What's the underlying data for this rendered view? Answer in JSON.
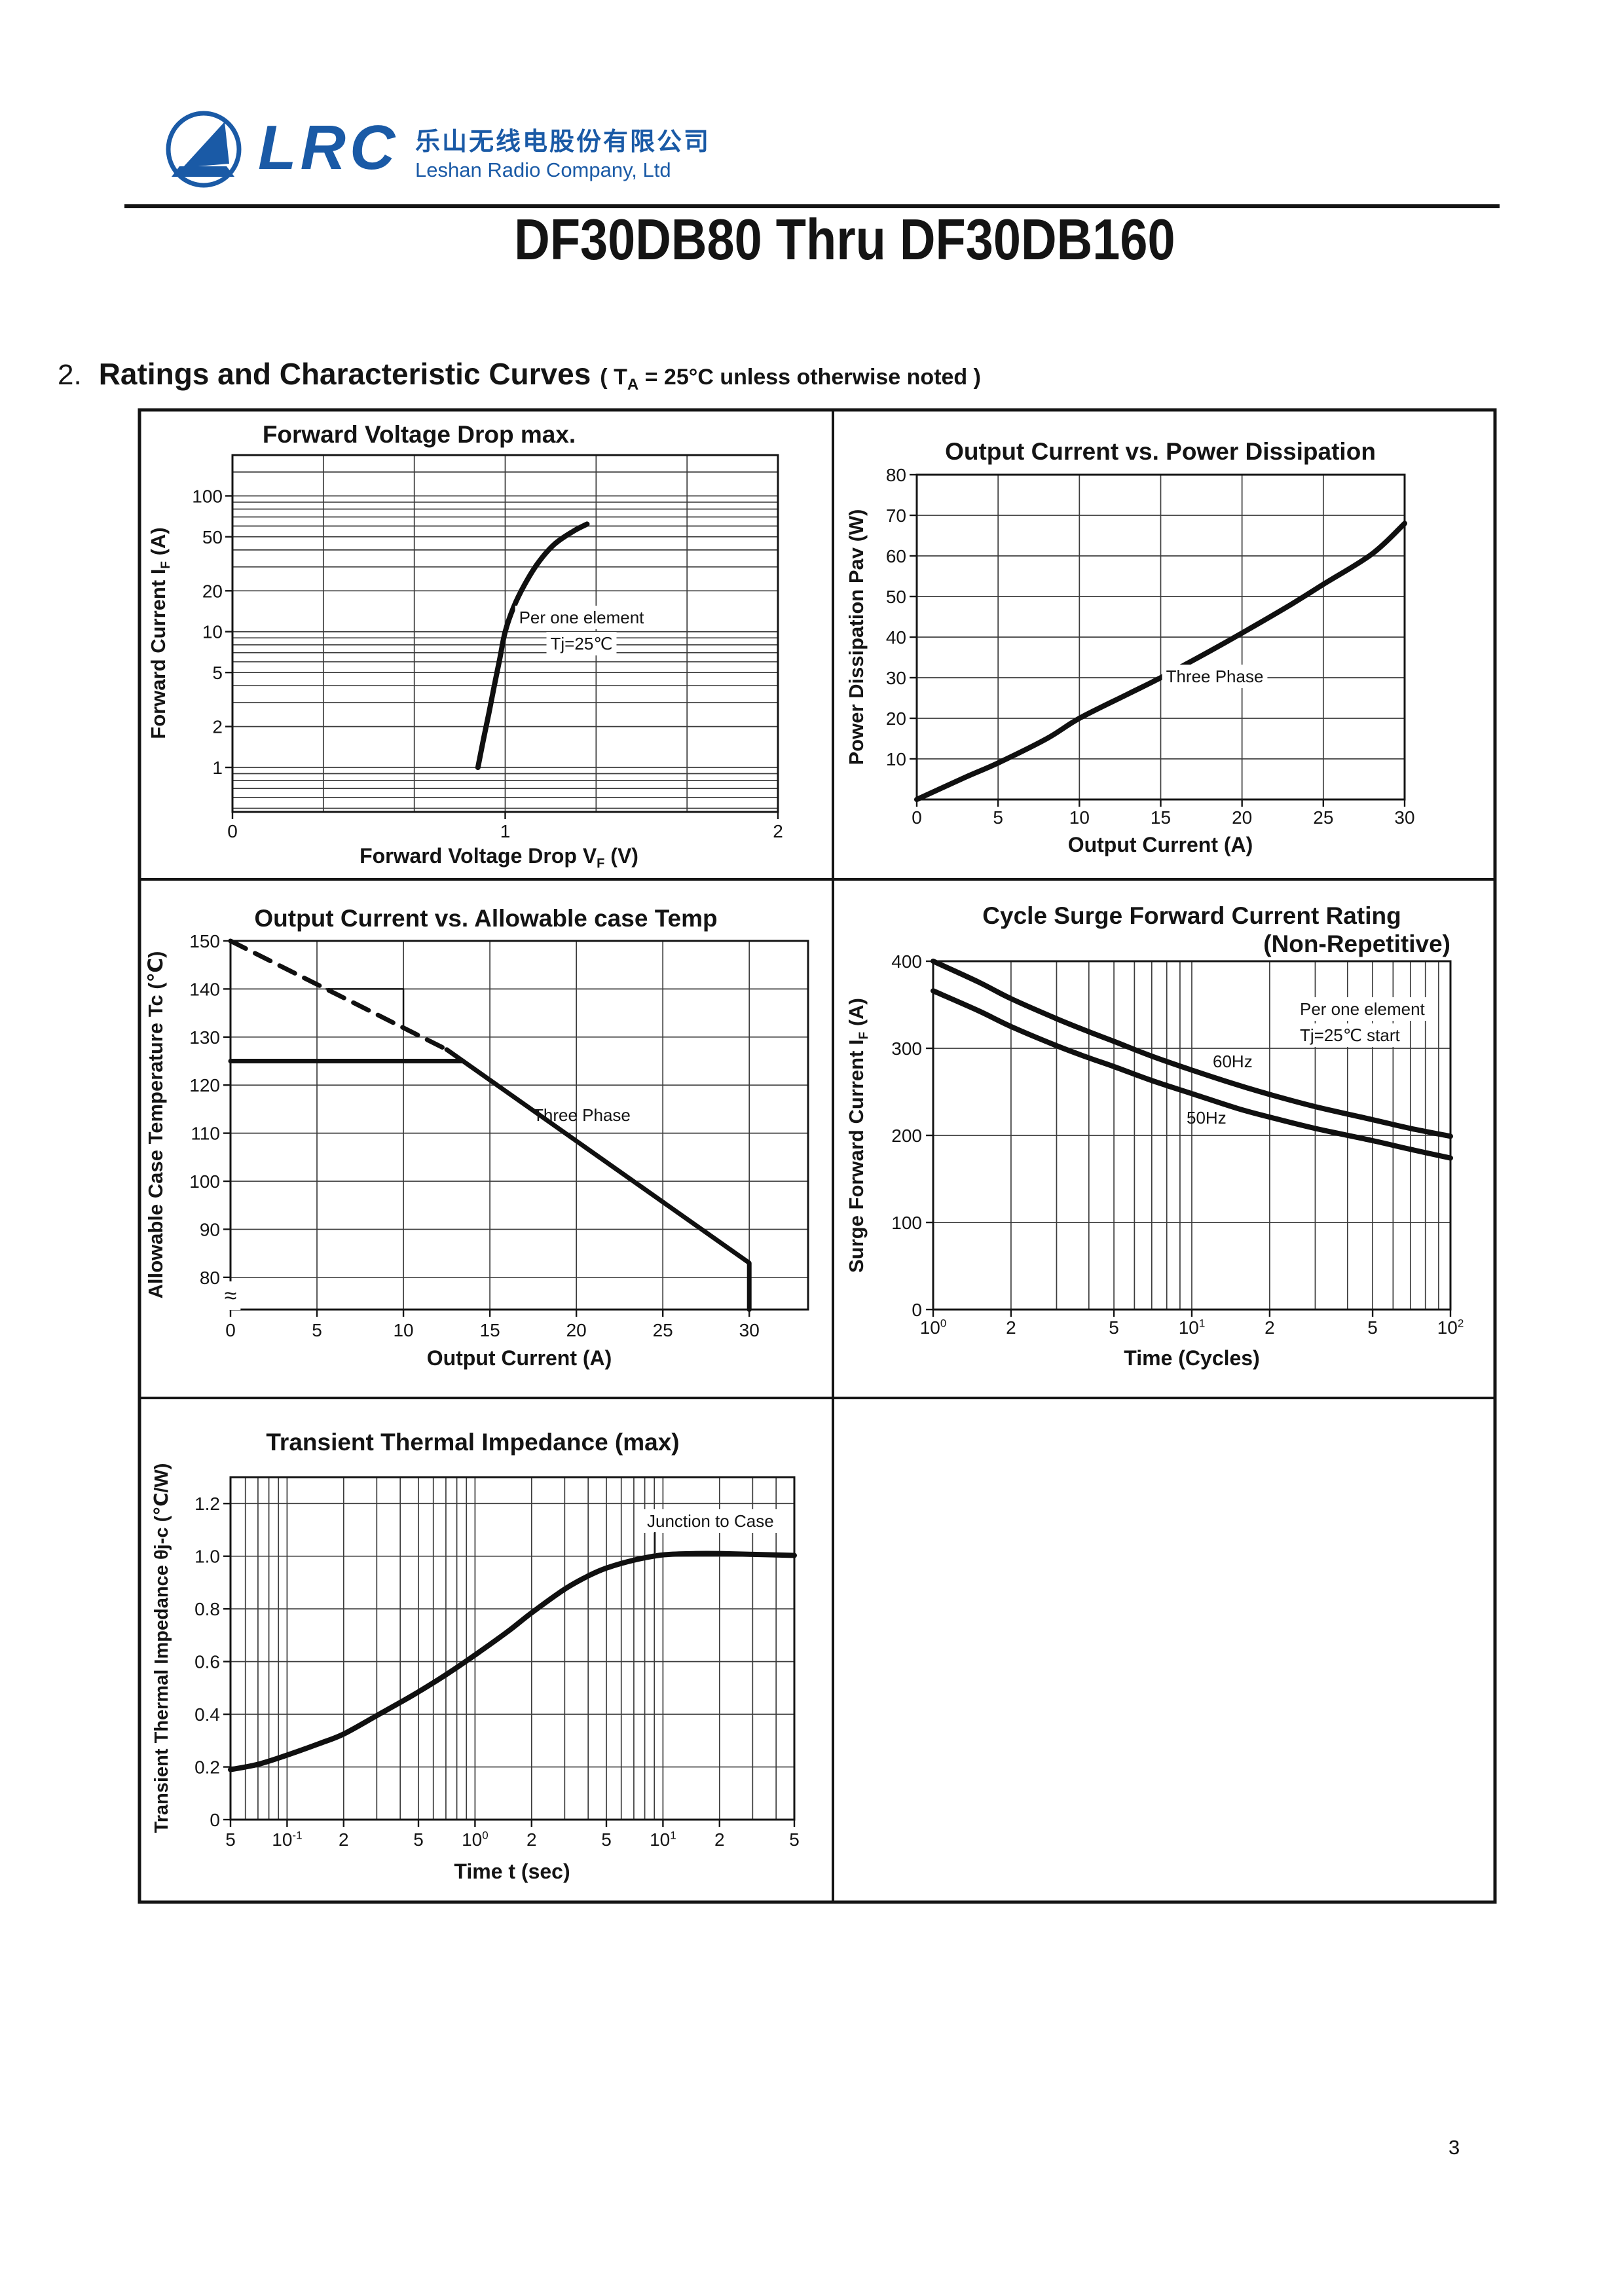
{
  "page": {
    "number": "3",
    "ink_color": "#141414",
    "grid_color": "#3d3d3d"
  },
  "header": {
    "logo": {
      "text": "LRC",
      "company_cn": "乐山无线电股份有限公司",
      "company_en": "Leshan Radio Company, Ltd",
      "color": "#1a5aa6",
      "mark": "sailboat-in-circle-icon"
    },
    "title": "DF30DB80 Thru DF30DB160",
    "section_no": "2.",
    "section_title": "Ratings and Characteristic Curves",
    "section_note_pre": "( T",
    "section_note_sub": "A",
    "section_note_post": " = 25°C unless otherwise noted )"
  },
  "chart_data": [
    {
      "id": "c1",
      "type": "line",
      "title": "Forward Voltage Drop max.",
      "xlabel": "Forward Voltage Drop V_{F} (V)",
      "ylabel": "Forward Current  I_{F} (A)",
      "x": {
        "scale": "linear",
        "min": 0,
        "max": 2,
        "ticks": [
          {
            "v": 0,
            "label": "0"
          },
          {
            "v": 1,
            "label": "1"
          },
          {
            "v": 2,
            "label": "2"
          }
        ],
        "grid": [
          0.3333,
          0.6667,
          1,
          1.3333,
          1.6667
        ]
      },
      "y": {
        "scale": "log",
        "min": 0.47,
        "max": 200,
        "ticks": [
          {
            "v": 1,
            "label": "1"
          },
          {
            "v": 2,
            "label": "2"
          },
          {
            "v": 5,
            "label": "5"
          },
          {
            "v": 10,
            "label": "10"
          },
          {
            "v": 20,
            "label": "20"
          },
          {
            "v": 50,
            "label": "50"
          },
          {
            "v": 100,
            "label": "100"
          }
        ],
        "grid": [
          0.5,
          0.6,
          0.7,
          0.8,
          0.9,
          1,
          2,
          3,
          4,
          5,
          6,
          7,
          8,
          9,
          10,
          20,
          30,
          40,
          50,
          60,
          70,
          80,
          90,
          100,
          150,
          200
        ]
      },
      "series": [
        {
          "name": "forward-voltage-curve",
          "width": 8,
          "points": [
            [
              0.9,
              1
            ],
            [
              0.92,
              1.6
            ],
            [
              0.94,
              2.5
            ],
            [
              0.96,
              4
            ],
            [
              0.98,
              6.3
            ],
            [
              1.0,
              10
            ],
            [
              1.03,
              15
            ],
            [
              1.07,
              22
            ],
            [
              1.12,
              32
            ],
            [
              1.18,
              44
            ],
            [
              1.25,
              55
            ],
            [
              1.3,
              62
            ]
          ]
        }
      ],
      "annotations": [
        {
          "lines": [
            "Per one element",
            "Tj=25℃"
          ]
        }
      ]
    },
    {
      "id": "c2",
      "type": "line",
      "title": "Output Current vs. Power Dissipation",
      "xlabel": "Output Current (A)",
      "ylabel": "Power Dissipation Pav (W)",
      "x": {
        "scale": "linear",
        "min": 0,
        "max": 30,
        "ticks": [
          {
            "v": 0,
            "label": "0"
          },
          {
            "v": 5,
            "label": "5"
          },
          {
            "v": 10,
            "label": "10"
          },
          {
            "v": 15,
            "label": "15"
          },
          {
            "v": 20,
            "label": "20"
          },
          {
            "v": 25,
            "label": "25"
          },
          {
            "v": 30,
            "label": "30"
          }
        ],
        "grid": [
          5,
          10,
          15,
          20,
          25
        ]
      },
      "y": {
        "scale": "linear",
        "min": 0,
        "max": 80,
        "ticks": [
          {
            "v": 10,
            "label": "10"
          },
          {
            "v": 20,
            "label": "20"
          },
          {
            "v": 30,
            "label": "30"
          },
          {
            "v": 40,
            "label": "40"
          },
          {
            "v": 50,
            "label": "50"
          },
          {
            "v": 60,
            "label": "60"
          },
          {
            "v": 70,
            "label": "70"
          },
          {
            "v": 80,
            "label": "80"
          }
        ],
        "grid": [
          10,
          20,
          30,
          40,
          50,
          60,
          70
        ]
      },
      "series": [
        {
          "name": "three-phase-power",
          "label": "Three Phase",
          "width": 8,
          "points": [
            [
              0,
              0
            ],
            [
              3,
              5.5
            ],
            [
              5,
              9
            ],
            [
              8,
              15
            ],
            [
              10,
              20
            ],
            [
              13,
              26
            ],
            [
              15,
              30
            ],
            [
              18,
              36.5
            ],
            [
              20,
              41
            ],
            [
              23,
              48
            ],
            [
              25,
              53
            ],
            [
              28,
              60.5
            ],
            [
              30,
              68
            ]
          ]
        }
      ]
    },
    {
      "id": "c3",
      "type": "line",
      "title": "Output Current vs. Allowable case Temp",
      "xlabel": "Output Current (A)",
      "ylabel": "Allowable Case Temperature Tc (℃)",
      "axis_break": "≈",
      "x": {
        "scale": "linear",
        "min": 0,
        "max": 33.4,
        "ticks": [
          {
            "v": 0,
            "label": "0"
          },
          {
            "v": 5,
            "label": "5"
          },
          {
            "v": 10,
            "label": "10"
          },
          {
            "v": 15,
            "label": "15"
          },
          {
            "v": 20,
            "label": "20"
          },
          {
            "v": 25,
            "label": "25"
          },
          {
            "v": 30,
            "label": "30"
          }
        ],
        "grid": [
          5,
          10,
          15,
          20,
          25,
          30
        ]
      },
      "y": {
        "scale": "linear",
        "min": 73.3,
        "max": 150,
        "ticks": [
          {
            "v": 80,
            "label": "80"
          },
          {
            "v": 90,
            "label": "90"
          },
          {
            "v": 100,
            "label": "100"
          },
          {
            "v": 110,
            "label": "110"
          },
          {
            "v": 120,
            "label": "120"
          },
          {
            "v": 130,
            "label": "130"
          },
          {
            "v": 140,
            "label": "140"
          },
          {
            "v": 150,
            "label": "150"
          }
        ],
        "grid": [
          80,
          90,
          100,
          110,
          120,
          130,
          140
        ]
      },
      "series": [
        {
          "name": "derating-dashed",
          "width": 7,
          "dash": [
            26,
            16
          ],
          "straight": true,
          "points": [
            [
              0,
              150
            ],
            [
              12.5,
              127.4
            ]
          ]
        },
        {
          "name": "derating-solid",
          "label": "Three Phase",
          "width": 7,
          "straight": true,
          "points": [
            [
              12.5,
              127.4
            ],
            [
              30,
              83
            ],
            [
              30,
              73.3
            ]
          ]
        },
        {
          "name": "case-temp-limit-125",
          "width": 7,
          "straight": true,
          "points": [
            [
              0,
              125
            ],
            [
              13.45,
              125
            ]
          ]
        },
        {
          "name": "reading-guide",
          "width": 2.5,
          "straight": true,
          "points": [
            [
              5.53,
              140
            ],
            [
              10,
              140
            ],
            [
              10,
              131.9
            ]
          ]
        }
      ]
    },
    {
      "id": "c4",
      "type": "line",
      "title": "Cycle Surge Forward Current Rating",
      "subtitle": "(Non-Repetitive)",
      "xlabel": "Time (Cycles)",
      "ylabel": "Surge Forward Current I_{F} (A)",
      "x": {
        "scale": "log",
        "min": 1,
        "max": 100,
        "ticks": [
          {
            "v": 1,
            "label": "10^{0}"
          },
          {
            "v": 2,
            "label": "2"
          },
          {
            "v": 5,
            "label": "5"
          },
          {
            "v": 10,
            "label": "10^{1}"
          },
          {
            "v": 20,
            "label": "2"
          },
          {
            "v": 50,
            "label": "5"
          },
          {
            "v": 100,
            "label": "10^{2}"
          }
        ],
        "grid": [
          2,
          3,
          4,
          5,
          6,
          7,
          8,
          9,
          10,
          20,
          30,
          40,
          50,
          60,
          70,
          80,
          90
        ]
      },
      "y": {
        "scale": "linear",
        "min": 0,
        "max": 400,
        "ticks": [
          {
            "v": 0,
            "label": "0"
          },
          {
            "v": 100,
            "label": "100"
          },
          {
            "v": 200,
            "label": "200"
          },
          {
            "v": 300,
            "label": "300"
          },
          {
            "v": 400,
            "label": "400"
          }
        ],
        "grid": [
          100,
          200,
          300
        ]
      },
      "series": [
        {
          "name": "surge-60hz",
          "label": "60Hz",
          "width": 8,
          "points": [
            [
              1,
              400
            ],
            [
              1.5,
              376
            ],
            [
              2,
              357
            ],
            [
              3,
              334
            ],
            [
              4,
              319
            ],
            [
              5,
              308
            ],
            [
              7,
              291
            ],
            [
              10,
              275
            ],
            [
              15,
              258
            ],
            [
              20,
              247
            ],
            [
              30,
              233
            ],
            [
              50,
              218
            ],
            [
              70,
              208
            ],
            [
              100,
              199
            ]
          ]
        },
        {
          "name": "surge-50hz",
          "label": "50Hz",
          "width": 8,
          "points": [
            [
              1,
              366
            ],
            [
              1.5,
              343
            ],
            [
              2,
              325
            ],
            [
              3,
              303
            ],
            [
              4,
              289
            ],
            [
              5,
              279
            ],
            [
              7,
              263
            ],
            [
              10,
              248
            ],
            [
              15,
              231
            ],
            [
              20,
              221
            ],
            [
              30,
              208
            ],
            [
              50,
              194
            ],
            [
              70,
              184
            ],
            [
              100,
              174
            ]
          ]
        }
      ],
      "annotations": [
        {
          "lines": [
            "Per one element",
            "Tj=25℃  start"
          ]
        }
      ]
    },
    {
      "id": "c5",
      "type": "line",
      "title": "Transient Thermal Impedance (max)",
      "xlabel": "Time t (sec)",
      "ylabel": "Transient Thermal Impedance θj-c (℃/W)",
      "x": {
        "scale": "log",
        "min": 0.05,
        "max": 50,
        "ticks": [
          {
            "v": 0.05,
            "label": "5"
          },
          {
            "v": 0.1,
            "label": "10^{-1}"
          },
          {
            "v": 0.2,
            "label": "2"
          },
          {
            "v": 0.5,
            "label": "5"
          },
          {
            "v": 1,
            "label": "10^{0}"
          },
          {
            "v": 2,
            "label": "2"
          },
          {
            "v": 5,
            "label": "5"
          },
          {
            "v": 10,
            "label": "10^{1}"
          },
          {
            "v": 20,
            "label": "2"
          },
          {
            "v": 50,
            "label": "5"
          }
        ],
        "grid": [
          0.06,
          0.07,
          0.08,
          0.09,
          0.1,
          0.2,
          0.3,
          0.4,
          0.5,
          0.6,
          0.7,
          0.8,
          0.9,
          1,
          2,
          3,
          4,
          5,
          6,
          7,
          8,
          9,
          10,
          20,
          30,
          40
        ]
      },
      "y": {
        "scale": "linear",
        "min": 0,
        "max": 1.3,
        "ticks": [
          {
            "v": 0,
            "label": "0"
          },
          {
            "v": 0.2,
            "label": "0.2"
          },
          {
            "v": 0.4,
            "label": "0.4"
          },
          {
            "v": 0.6,
            "label": "0.6"
          },
          {
            "v": 0.8,
            "label": "0.8"
          },
          {
            "v": 1.0,
            "label": "1.0"
          },
          {
            "v": 1.2,
            "label": "1.2"
          }
        ],
        "grid": [
          0.2,
          0.4,
          0.6,
          0.8,
          1.0,
          1.2
        ]
      },
      "series": [
        {
          "name": "junction-to-case",
          "label": "Junction to Case",
          "width": 8,
          "points": [
            [
              0.05,
              0.19
            ],
            [
              0.07,
              0.21
            ],
            [
              0.1,
              0.245
            ],
            [
              0.15,
              0.29
            ],
            [
              0.2,
              0.325
            ],
            [
              0.3,
              0.395
            ],
            [
              0.4,
              0.445
            ],
            [
              0.5,
              0.485
            ],
            [
              0.7,
              0.55
            ],
            [
              1,
              0.625
            ],
            [
              1.5,
              0.715
            ],
            [
              2,
              0.785
            ],
            [
              3,
              0.875
            ],
            [
              4,
              0.925
            ],
            [
              5,
              0.955
            ],
            [
              7,
              0.985
            ],
            [
              10,
              1.005
            ],
            [
              15,
              1.01
            ],
            [
              20,
              1.01
            ],
            [
              30,
              1.007
            ],
            [
              50,
              1.003
            ]
          ]
        }
      ]
    }
  ]
}
